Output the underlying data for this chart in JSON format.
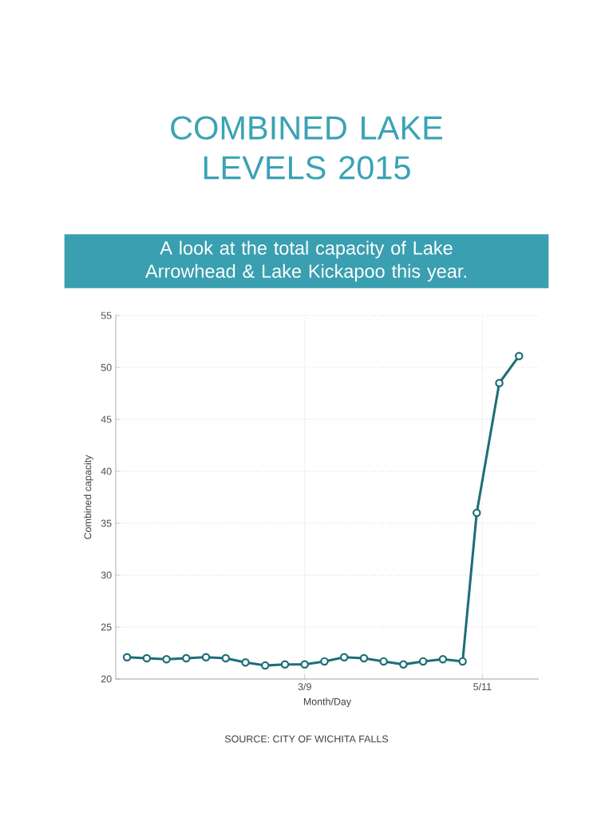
{
  "chart_data": {
    "type": "line",
    "title": "COMBINED LAKE LEVELS 2015",
    "subtitle": "A look at the total capacity of Lake Arrowhead & Lake Kickapoo this year.",
    "xlabel": "Month/Day",
    "ylabel": "Combined capacity",
    "x": [
      "2015-01-05",
      "2015-01-12",
      "2015-01-19",
      "2015-01-26",
      "2015-02-02",
      "2015-02-09",
      "2015-02-16",
      "2015-02-23",
      "2015-03-02",
      "2015-03-09",
      "2015-03-16",
      "2015-03-23",
      "2015-03-30",
      "2015-04-06",
      "2015-04-13",
      "2015-04-20",
      "2015-04-27",
      "2015-05-04",
      "2015-05-09",
      "2015-05-17",
      "2015-05-24"
    ],
    "series": [
      {
        "color": "#1d6e7a",
        "values": [
          22.1,
          22.0,
          21.9,
          22.0,
          22.1,
          22.0,
          21.6,
          21.3,
          21.4,
          21.4,
          21.7,
          22.1,
          22.0,
          21.7,
          21.4,
          21.7,
          21.9,
          21.7,
          36,
          48.5,
          51.1
        ]
      }
    ],
    "xlim": [
      "2015-01-01",
      "2015-05-31"
    ],
    "xticks": [
      {
        "value": "2015-03-09",
        "label": "3/9"
      },
      {
        "value": "2015-05-11",
        "label": "5/11"
      }
    ],
    "ylim": [
      20,
      55
    ],
    "yticks": [
      20,
      25,
      30,
      35,
      40,
      45,
      50,
      55
    ],
    "grid": true,
    "marker": "circle",
    "line_style": "solid",
    "annotations": [
      "SOURCE: CITY OF WICHITA FALLS"
    ]
  }
}
